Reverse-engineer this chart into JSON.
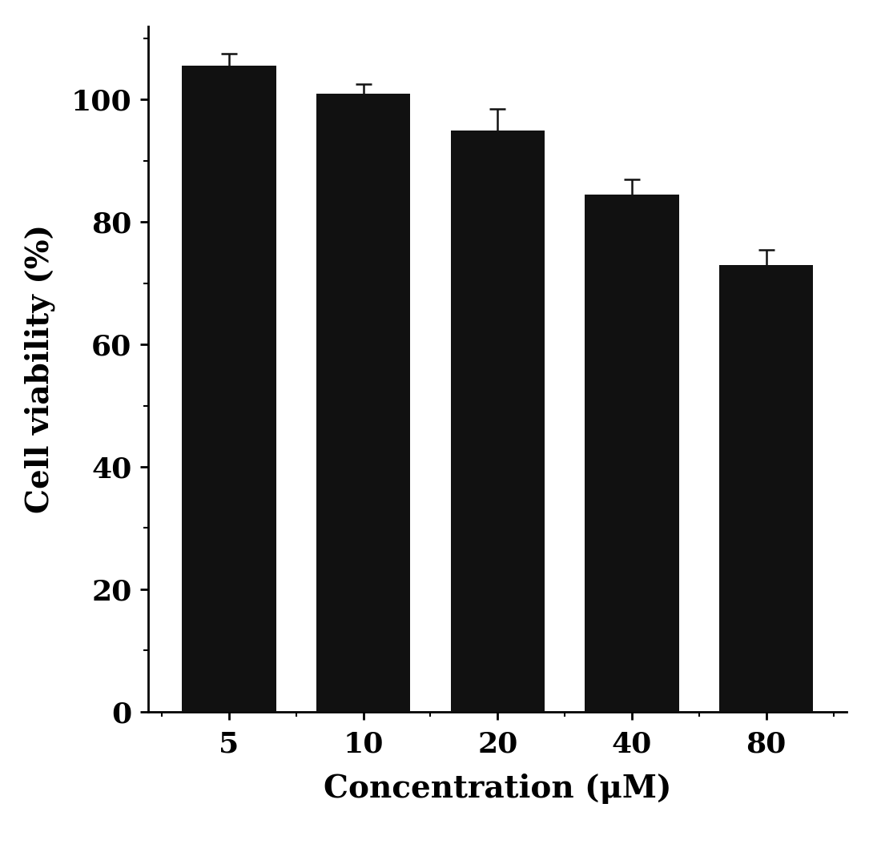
{
  "categories": [
    "5",
    "10",
    "20",
    "40",
    "80"
  ],
  "values": [
    105.5,
    101.0,
    95.0,
    84.5,
    73.0
  ],
  "errors": [
    2.0,
    1.5,
    3.5,
    2.5,
    2.5
  ],
  "bar_color": "#111111",
  "bar_width": 0.7,
  "xlabel": "Concentration (μM)",
  "ylabel": "Cell viability (%)",
  "ylim": [
    0,
    112
  ],
  "yticks": [
    0,
    20,
    40,
    60,
    80,
    100
  ],
  "xlabel_fontsize": 28,
  "ylabel_fontsize": 28,
  "tick_fontsize": 26,
  "error_color": "#111111",
  "error_linewidth": 1.8,
  "error_capsize": 7,
  "error_capthick": 1.8,
  "background_color": "#ffffff",
  "spine_linewidth": 2.0
}
